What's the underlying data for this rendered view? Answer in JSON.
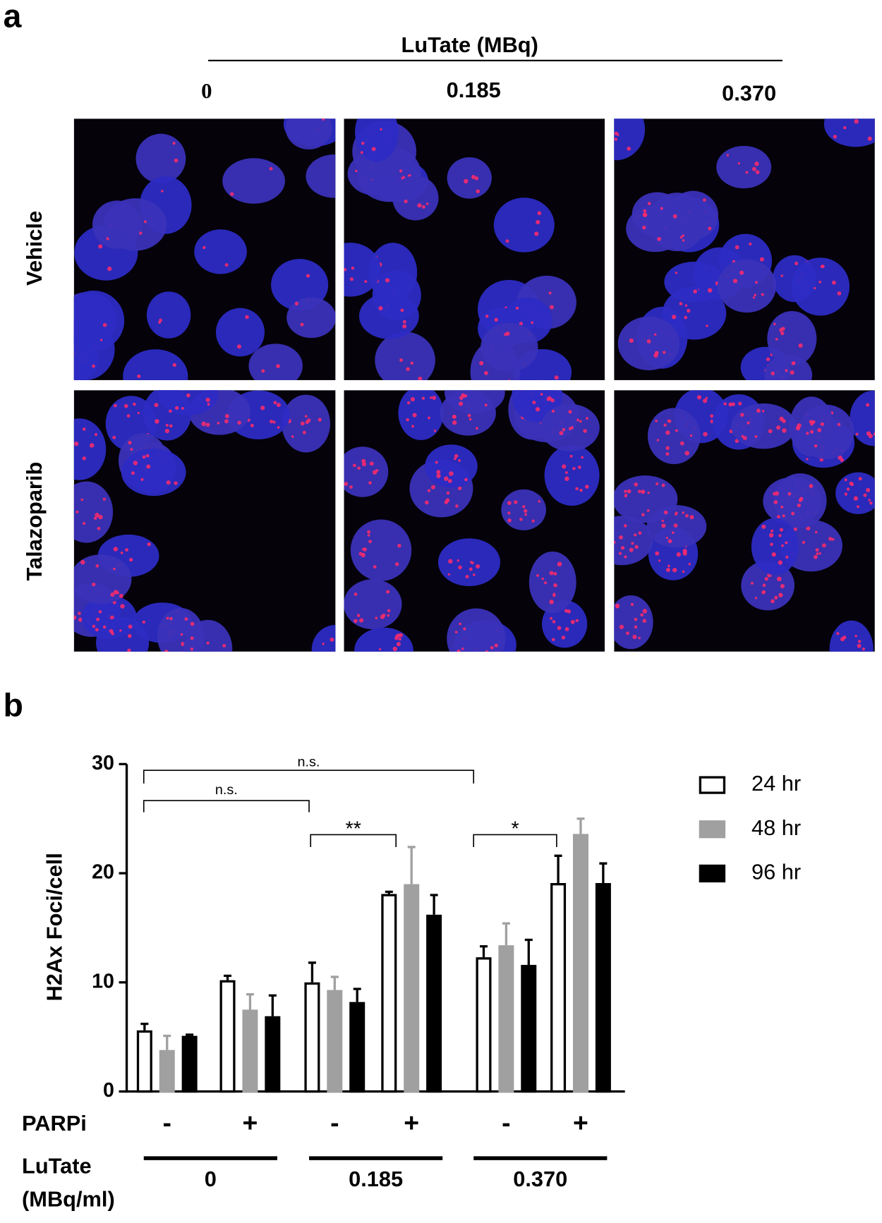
{
  "panel_a": {
    "letter": "a",
    "title": "LuTate (MBq)",
    "columns": [
      "0",
      "0.185",
      "0.370"
    ],
    "rows": [
      "Vehicle",
      "Talazoparib"
    ]
  },
  "chart_data": {
    "type": "bar",
    "letter": "b",
    "y_label": "H2Ax Foci/cell",
    "category_axis_label": "PARPi",
    "categories": [
      "-",
      "+",
      "-",
      "+",
      "-",
      "+"
    ],
    "group_axis_label": [
      "LuTate",
      "(MBq/ml)"
    ],
    "groups": [
      "0",
      "0.185",
      "0.370"
    ],
    "ylim": [
      0,
      30
    ],
    "yticks": [
      0,
      10,
      20,
      30
    ],
    "series": [
      {
        "name": "24 hr",
        "color": "#ffffff",
        "edgecolor": "#000000",
        "values": [
          5.6,
          10.2,
          10.0,
          18.1,
          12.3,
          19.1
        ],
        "errors": [
          0.6,
          0.4,
          1.8,
          0.2,
          1.0,
          2.5
        ]
      },
      {
        "name": "48 hr",
        "color": "#a0a0a0",
        "values": [
          3.8,
          7.5,
          9.3,
          19.0,
          13.4,
          23.6
        ],
        "errors": [
          1.3,
          1.4,
          1.2,
          3.4,
          2.0,
          1.4
        ]
      },
      {
        "name": "96 hr",
        "color": "#000000",
        "values": [
          5.1,
          6.9,
          8.2,
          16.2,
          11.6,
          19.1
        ],
        "errors": [
          0.1,
          1.9,
          1.2,
          1.8,
          2.3,
          1.8
        ]
      }
    ],
    "annotations": [
      "n.s.",
      "n.s.",
      "**",
      "*"
    ]
  }
}
